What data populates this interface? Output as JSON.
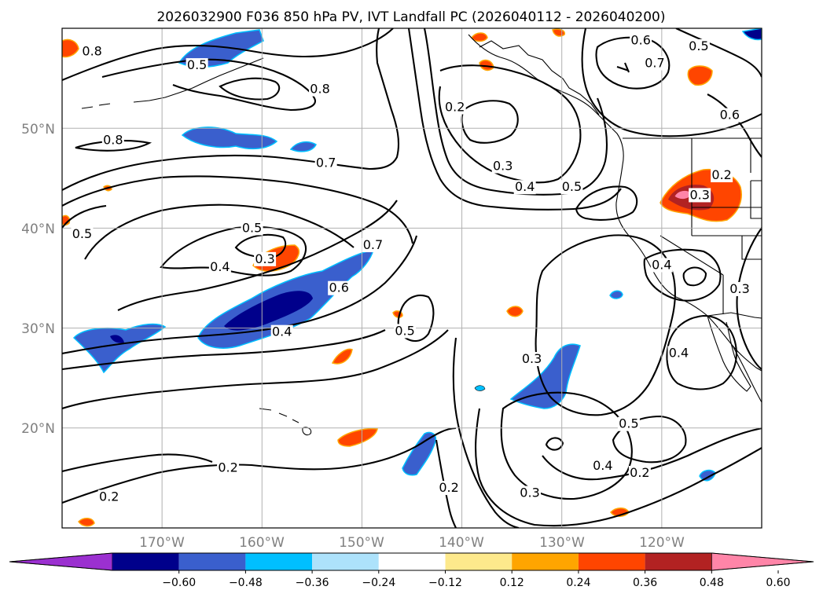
{
  "title": "2026032900 F036 850 hPa PV, IVT Landfall PC (2026040112 - 2026040200)",
  "map": {
    "projection": "equirectangular",
    "lon_range": [
      -180,
      -110
    ],
    "lat_range": [
      10,
      60
    ],
    "lat_labels": [
      "50°N",
      "40°N",
      "30°N",
      "20°N"
    ],
    "lon_labels": [
      "170°W",
      "160°W",
      "150°W",
      "140°W",
      "130°W",
      "120°W"
    ],
    "grid": true
  },
  "colorbar": {
    "ticks": [
      "−0.60",
      "−0.48",
      "−0.36",
      "−0.24",
      "−0.12",
      "0.12",
      "0.24",
      "0.36",
      "0.48",
      "0.60"
    ],
    "colors": [
      "#9b30d0",
      "#00008b",
      "#3a5fcd",
      "#00bfff",
      "#ade2fb",
      "#ffffff",
      "#fde98c",
      "#ffa500",
      "#ff4500",
      "#b22222",
      "#ff85a8"
    ],
    "extend": "both"
  },
  "contour_labels": [
    {
      "text": "0.8",
      "lon": -177.0,
      "lat": 57.7
    },
    {
      "text": "0.5",
      "lon": -166.5,
      "lat": 56.3
    },
    {
      "text": "0.8",
      "lon": -174.9,
      "lat": 48.8
    },
    {
      "text": "0.8",
      "lon": -154.2,
      "lat": 53.9
    },
    {
      "text": "0.7",
      "lon": -153.6,
      "lat": 46.5
    },
    {
      "text": "0.5",
      "lon": -178.0,
      "lat": 39.4
    },
    {
      "text": "0.5",
      "lon": -161.0,
      "lat": 40.0
    },
    {
      "text": "0.3",
      "lon": -159.7,
      "lat": 36.9
    },
    {
      "text": "0.4",
      "lon": -164.2,
      "lat": 36.1
    },
    {
      "text": "0.7",
      "lon": -148.9,
      "lat": 38.3
    },
    {
      "text": "0.6",
      "lon": -152.3,
      "lat": 34.0
    },
    {
      "text": "0.4",
      "lon": -158.0,
      "lat": 29.6
    },
    {
      "text": "0.5",
      "lon": -145.7,
      "lat": 29.7
    },
    {
      "text": "0.2",
      "lon": -140.7,
      "lat": 52.1
    },
    {
      "text": "0.3",
      "lon": -135.9,
      "lat": 46.2
    },
    {
      "text": "0.4",
      "lon": -133.7,
      "lat": 44.1
    },
    {
      "text": "0.5",
      "lon": -129.0,
      "lat": 44.1
    },
    {
      "text": "0.6",
      "lon": -122.1,
      "lat": 58.8
    },
    {
      "text": "0.7",
      "lon": -120.7,
      "lat": 56.5
    },
    {
      "text": "0.5",
      "lon": -116.3,
      "lat": 58.2
    },
    {
      "text": "0.6",
      "lon": -113.2,
      "lat": 51.3
    },
    {
      "text": "0.2",
      "lon": -114.0,
      "lat": 45.3
    },
    {
      "text": "0.3",
      "lon": -116.2,
      "lat": 43.3
    },
    {
      "text": "0.4",
      "lon": -120.0,
      "lat": 36.3
    },
    {
      "text": "0.3",
      "lon": -112.2,
      "lat": 33.9
    },
    {
      "text": "0.4",
      "lon": -118.3,
      "lat": 27.5
    },
    {
      "text": "0.3",
      "lon": -133.0,
      "lat": 26.9
    },
    {
      "text": "0.5",
      "lon": -123.3,
      "lat": 20.4
    },
    {
      "text": "0.4",
      "lon": -125.9,
      "lat": 16.2
    },
    {
      "text": "0.2",
      "lon": -122.2,
      "lat": 15.5
    },
    {
      "text": "0.3",
      "lon": -133.2,
      "lat": 13.5
    },
    {
      "text": "0.2",
      "lon": -163.4,
      "lat": 16.0
    },
    {
      "text": "0.2",
      "lon": -175.3,
      "lat": 13.1
    },
    {
      "text": "0.2",
      "lon": -141.3,
      "lat": 14.0
    }
  ]
}
